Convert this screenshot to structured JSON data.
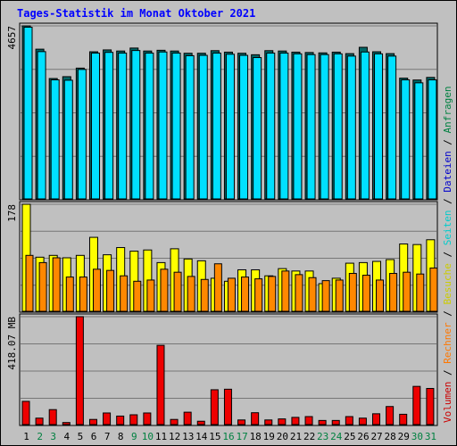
{
  "title": "Tages-Statistik im Monat Oktober 2021",
  "colors": {
    "background": "#c0c0c0",
    "title": "#0000ff",
    "grid": "#777777",
    "hits_front": "#00e0ff",
    "hits_back": "#006666",
    "visits": "#ffff00",
    "sites": "#ff8800",
    "volume": "#ee0000",
    "weekday_label": "#000000",
    "weekend_label": "#008040"
  },
  "right_legend": [
    {
      "text": "Volumen",
      "color": "#cc0000"
    },
    {
      "text": " / ",
      "color": "#000000"
    },
    {
      "text": "Rechner",
      "color": "#ff7700"
    },
    {
      "text": " / ",
      "color": "#000000"
    },
    {
      "text": "Besuche",
      "color": "#cccc00"
    },
    {
      "text": " / ",
      "color": "#000000"
    },
    {
      "text": "Seiten",
      "color": "#00cccc"
    },
    {
      "text": " / ",
      "color": "#000000"
    },
    {
      "text": "Dateien",
      "color": "#0000cc"
    },
    {
      "text": " / ",
      "color": "#000000"
    },
    {
      "text": "Anfragen",
      "color": "#008040"
    }
  ],
  "chart_data": [
    {
      "type": "bar",
      "panel": "top",
      "y_max_label": "4657",
      "ylim": [
        0,
        4657
      ],
      "grid": true,
      "categories": [
        "1",
        "2",
        "3",
        "4",
        "5",
        "6",
        "7",
        "8",
        "9",
        "10",
        "11",
        "12",
        "13",
        "14",
        "15",
        "16",
        "17",
        "18",
        "19",
        "20",
        "21",
        "22",
        "23",
        "24",
        "25",
        "26",
        "27",
        "28",
        "29",
        "30",
        "31"
      ],
      "weekend": [
        2,
        3,
        9,
        10,
        16,
        17,
        23,
        24,
        30,
        31
      ],
      "series": [
        {
          "name": "Anfragen",
          "values": [
            4657,
            4030,
            3240,
            3290,
            3520,
            3960,
            4010,
            3980,
            4060,
            3980,
            4000,
            3980,
            3920,
            3920,
            3990,
            3950,
            3920,
            3880,
            3990,
            3980,
            3950,
            3940,
            3930,
            3950,
            3910,
            4080,
            3960,
            3910,
            3250,
            3200,
            3270
          ]
        },
        {
          "name": "Dateien",
          "values": [
            4657,
            4000,
            3240,
            3230,
            3520,
            3960,
            3980,
            3960,
            4030,
            3960,
            3990,
            3960,
            3890,
            3900,
            3960,
            3930,
            3900,
            3840,
            3960,
            3960,
            3940,
            3920,
            3920,
            3940,
            3880,
            3990,
            3940,
            3880,
            3240,
            3160,
            3240
          ]
        }
      ]
    },
    {
      "type": "bar",
      "panel": "middle",
      "y_max_label": "178",
      "ylim": [
        0,
        178
      ],
      "grid": true,
      "categories": [
        "1",
        "2",
        "3",
        "4",
        "5",
        "6",
        "7",
        "8",
        "9",
        "10",
        "11",
        "12",
        "13",
        "14",
        "15",
        "16",
        "17",
        "18",
        "19",
        "20",
        "21",
        "22",
        "23",
        "24",
        "25",
        "26",
        "27",
        "28",
        "29",
        "30",
        "31"
      ],
      "series": [
        {
          "name": "Besuche",
          "values": [
            178,
            90,
            93,
            89,
            93,
            123,
            94,
            106,
            100,
            102,
            81,
            104,
            87,
            84,
            55,
            50,
            69,
            69,
            59,
            71,
            67,
            67,
            46,
            55,
            80,
            81,
            83,
            86,
            112,
            111,
            119
          ]
        },
        {
          "name": "Rechner",
          "values": [
            93,
            81,
            89,
            57,
            57,
            70,
            68,
            59,
            50,
            52,
            70,
            65,
            58,
            53,
            79,
            55,
            57,
            54,
            58,
            67,
            61,
            56,
            51,
            52,
            63,
            60,
            52,
            63,
            65,
            62,
            72
          ]
        }
      ]
    },
    {
      "type": "bar",
      "panel": "bottom",
      "y_max_label": "418.07 MB",
      "ylim": [
        0,
        418.07
      ],
      "grid": true,
      "categories": [
        "1",
        "2",
        "3",
        "4",
        "5",
        "6",
        "7",
        "8",
        "9",
        "10",
        "11",
        "12",
        "13",
        "14",
        "15",
        "16",
        "17",
        "18",
        "19",
        "20",
        "21",
        "22",
        "23",
        "24",
        "25",
        "26",
        "27",
        "28",
        "29",
        "30",
        "31"
      ],
      "series": [
        {
          "name": "Volumen",
          "values": [
            90,
            25,
            58,
            8,
            418,
            20,
            45,
            33,
            38,
            45,
            307,
            20,
            48,
            13,
            135,
            137,
            18,
            46,
            18,
            22,
            28,
            31,
            16,
            16,
            31,
            25,
            42,
            70,
            40,
            148,
            140
          ]
        }
      ]
    }
  ]
}
